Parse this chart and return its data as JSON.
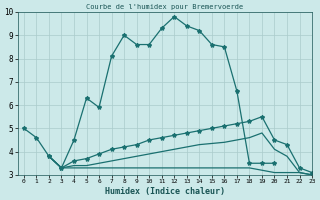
{
  "title": "Courbe de l'humidex pour Bremervoerde",
  "xlabel": "Humidex (Indice chaleur)",
  "bg_color": "#cce9e9",
  "line_color": "#1a7070",
  "grid_color": "#aacccc",
  "xlim": [
    -0.5,
    23
  ],
  "ylim": [
    3,
    10
  ],
  "yticks": [
    3,
    4,
    5,
    6,
    7,
    8,
    9,
    10
  ],
  "xticks": [
    0,
    1,
    2,
    3,
    4,
    5,
    6,
    7,
    8,
    9,
    10,
    11,
    12,
    13,
    14,
    15,
    16,
    17,
    18,
    19,
    20,
    21,
    22,
    23
  ],
  "series": [
    {
      "x": [
        0,
        1,
        2,
        3,
        4,
        5,
        6,
        7,
        8,
        9,
        10,
        11,
        12,
        13,
        14,
        15,
        16,
        17,
        18,
        19,
        20
      ],
      "y": [
        5.0,
        4.6,
        3.8,
        3.3,
        4.5,
        6.3,
        5.9,
        8.1,
        9.0,
        8.6,
        8.6,
        9.3,
        9.8,
        9.4,
        9.2,
        8.6,
        8.5,
        6.6,
        3.5,
        3.5,
        3.5
      ],
      "marker": true
    },
    {
      "x": [
        2,
        3,
        4,
        5,
        6,
        7,
        8,
        9,
        10,
        11,
        12,
        13,
        14,
        15,
        16,
        17,
        18,
        19,
        20,
        21,
        22,
        23
      ],
      "y": [
        3.8,
        3.3,
        3.6,
        3.7,
        3.9,
        4.1,
        4.2,
        4.3,
        4.5,
        4.6,
        4.7,
        4.8,
        4.9,
        5.0,
        5.1,
        5.2,
        5.3,
        5.5,
        4.5,
        4.3,
        3.3,
        3.1
      ],
      "marker": true
    },
    {
      "x": [
        2,
        3,
        4,
        5,
        6,
        7,
        8,
        9,
        10,
        11,
        12,
        13,
        14,
        15,
        16,
        17,
        18,
        19,
        20,
        21,
        22,
        23
      ],
      "y": [
        3.8,
        3.3,
        3.4,
        3.4,
        3.5,
        3.6,
        3.7,
        3.8,
        3.9,
        4.0,
        4.1,
        4.2,
        4.3,
        4.35,
        4.4,
        4.5,
        4.6,
        4.8,
        4.1,
        3.8,
        3.1,
        3.0
      ],
      "marker": false
    },
    {
      "x": [
        2,
        3,
        4,
        5,
        6,
        7,
        8,
        9,
        10,
        11,
        12,
        13,
        14,
        15,
        16,
        17,
        18,
        19,
        20,
        21,
        22,
        23
      ],
      "y": [
        3.8,
        3.3,
        3.3,
        3.3,
        3.3,
        3.3,
        3.3,
        3.3,
        3.3,
        3.3,
        3.3,
        3.3,
        3.3,
        3.3,
        3.3,
        3.3,
        3.3,
        3.2,
        3.1,
        3.1,
        3.1,
        3.0
      ],
      "marker": false
    }
  ]
}
